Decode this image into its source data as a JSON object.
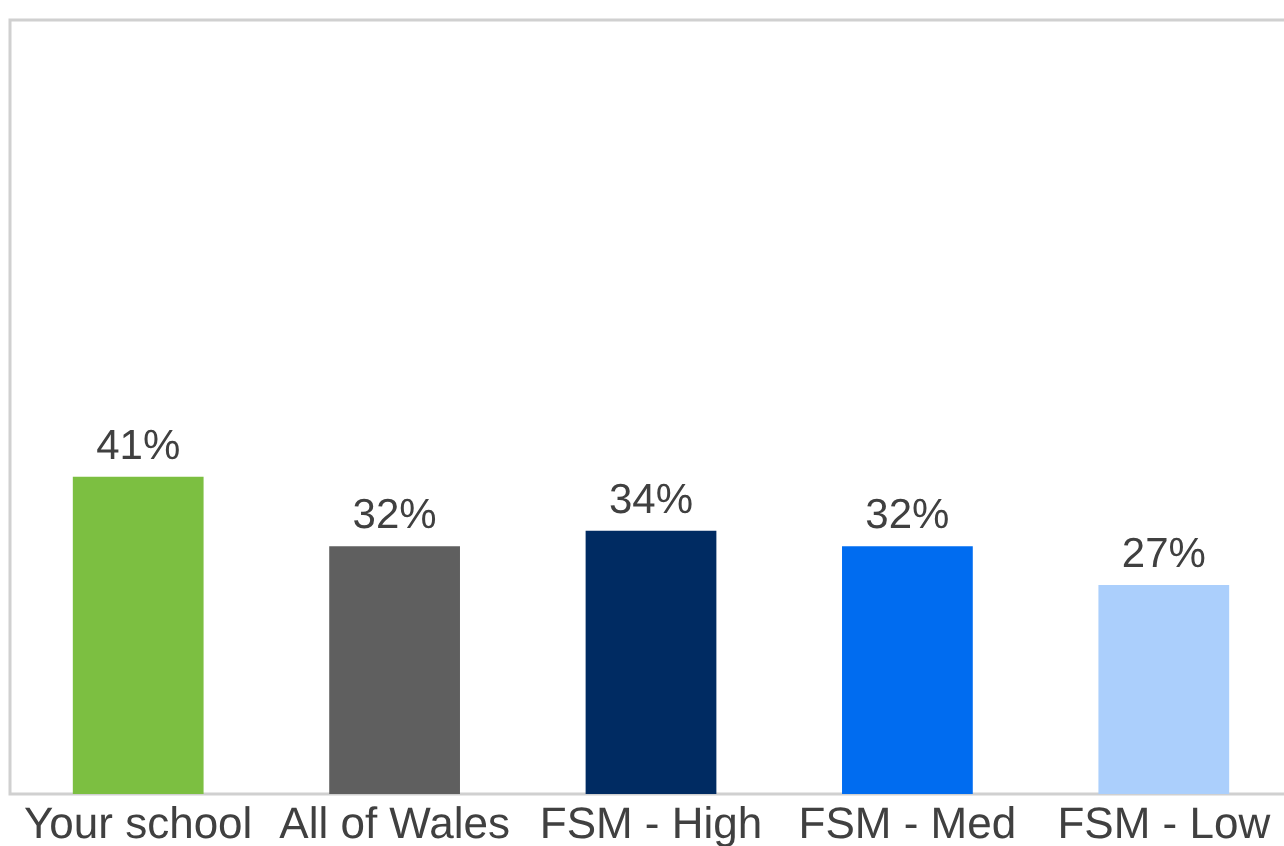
{
  "chart_data": {
    "type": "bar",
    "categories": [
      "Your school",
      "All of Wales",
      "FSM - High",
      "FSM - Med",
      "FSM - Low"
    ],
    "values": [
      41,
      32,
      34,
      32,
      27
    ],
    "colors": [
      "#7cbf41",
      "#5f5f5f",
      "#002b62",
      "#006cf0",
      "#abcffc"
    ],
    "value_labels": [
      "41%",
      "32%",
      "34%",
      "32%",
      "27%"
    ],
    "ylim": [
      0,
      100
    ],
    "tick_labels": "x",
    "grid": false,
    "legend": false
  }
}
